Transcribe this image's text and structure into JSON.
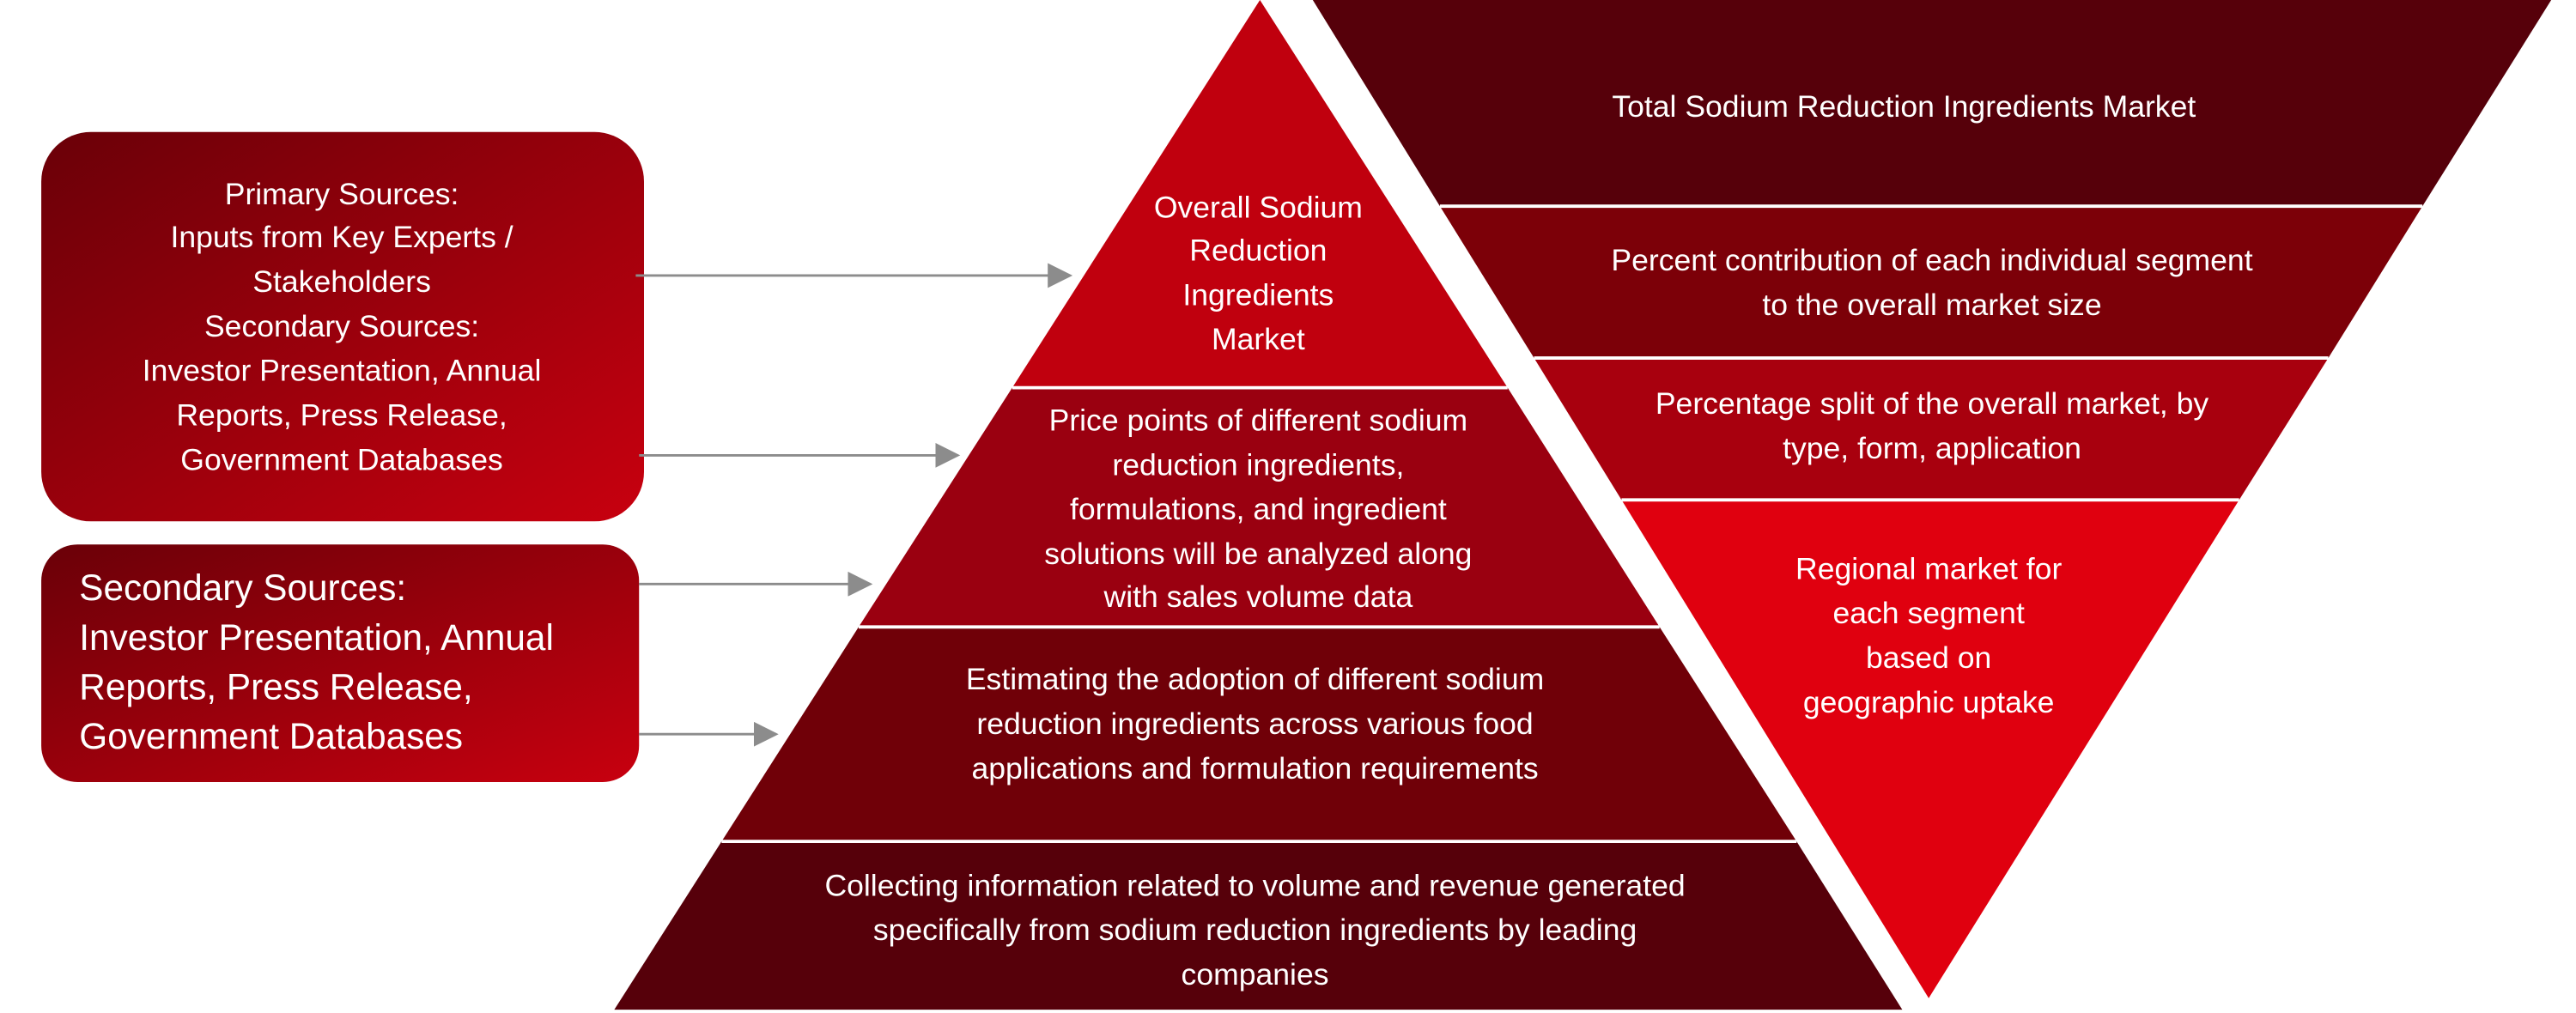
{
  "sources": [
    {
      "lines": [
        "Primary Sources:",
        "Inputs from Key Experts /",
        "Stakeholders",
        "Secondary Sources:",
        "Investor Presentation, Annual",
        "Reports, Press Release,",
        "Government Databases"
      ]
    },
    {
      "lines": [
        "Secondary Sources:",
        "Investor Presentation, Annual",
        "Reports, Press Release,",
        "Government Databases"
      ]
    }
  ],
  "pyramid": [
    {
      "lines": [
        "Overall Sodium",
        "Reduction",
        "Ingredients",
        "Market"
      ]
    },
    {
      "lines": [
        "Price points of different sodium",
        "reduction ingredients,",
        "formulations, and ingredient",
        "solutions will be analyzed along",
        "with sales volume data"
      ]
    },
    {
      "lines": [
        "Estimating the adoption of different sodium",
        "reduction ingredients across various food",
        "applications and formulation requirements"
      ]
    },
    {
      "lines": [
        "Collecting information related to volume and revenue generated",
        "specifically from sodium reduction ingredients by leading",
        "companies"
      ]
    }
  ],
  "inverted_pyramid": [
    {
      "lines": [
        "Total Sodium Reduction Ingredients Market"
      ]
    },
    {
      "lines": [
        "Percent contribution of each individual segment",
        "to the overall market size"
      ]
    },
    {
      "lines": [
        "Percentage split of the overall market, by",
        "type, form, application"
      ]
    },
    {
      "lines": [
        "Regional market for",
        "each segment",
        "based on",
        "geographic uptake"
      ]
    }
  ]
}
